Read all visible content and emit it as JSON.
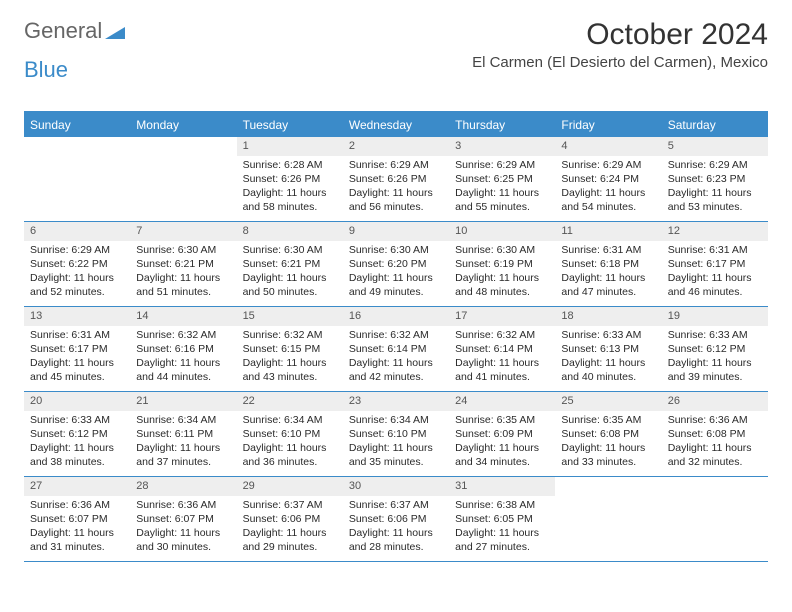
{
  "logo": {
    "text1": "General",
    "text2": "Blue"
  },
  "title": "October 2024",
  "location": "El Carmen (El Desierto del Carmen), Mexico",
  "colors": {
    "header_bg": "#3b8bc9",
    "header_text": "#ffffff",
    "daynum_bg": "#eeeeee",
    "border": "#3b8bc9",
    "body_text": "#2a2a2a",
    "page_bg": "#ffffff"
  },
  "dayNames": [
    "Sunday",
    "Monday",
    "Tuesday",
    "Wednesday",
    "Thursday",
    "Friday",
    "Saturday"
  ],
  "weeks": [
    [
      null,
      null,
      {
        "n": "1",
        "sr": "6:28 AM",
        "ss": "6:26 PM",
        "dl": "11 hours and 58 minutes."
      },
      {
        "n": "2",
        "sr": "6:29 AM",
        "ss": "6:26 PM",
        "dl": "11 hours and 56 minutes."
      },
      {
        "n": "3",
        "sr": "6:29 AM",
        "ss": "6:25 PM",
        "dl": "11 hours and 55 minutes."
      },
      {
        "n": "4",
        "sr": "6:29 AM",
        "ss": "6:24 PM",
        "dl": "11 hours and 54 minutes."
      },
      {
        "n": "5",
        "sr": "6:29 AM",
        "ss": "6:23 PM",
        "dl": "11 hours and 53 minutes."
      }
    ],
    [
      {
        "n": "6",
        "sr": "6:29 AM",
        "ss": "6:22 PM",
        "dl": "11 hours and 52 minutes."
      },
      {
        "n": "7",
        "sr": "6:30 AM",
        "ss": "6:21 PM",
        "dl": "11 hours and 51 minutes."
      },
      {
        "n": "8",
        "sr": "6:30 AM",
        "ss": "6:21 PM",
        "dl": "11 hours and 50 minutes."
      },
      {
        "n": "9",
        "sr": "6:30 AM",
        "ss": "6:20 PM",
        "dl": "11 hours and 49 minutes."
      },
      {
        "n": "10",
        "sr": "6:30 AM",
        "ss": "6:19 PM",
        "dl": "11 hours and 48 minutes."
      },
      {
        "n": "11",
        "sr": "6:31 AM",
        "ss": "6:18 PM",
        "dl": "11 hours and 47 minutes."
      },
      {
        "n": "12",
        "sr": "6:31 AM",
        "ss": "6:17 PM",
        "dl": "11 hours and 46 minutes."
      }
    ],
    [
      {
        "n": "13",
        "sr": "6:31 AM",
        "ss": "6:17 PM",
        "dl": "11 hours and 45 minutes."
      },
      {
        "n": "14",
        "sr": "6:32 AM",
        "ss": "6:16 PM",
        "dl": "11 hours and 44 minutes."
      },
      {
        "n": "15",
        "sr": "6:32 AM",
        "ss": "6:15 PM",
        "dl": "11 hours and 43 minutes."
      },
      {
        "n": "16",
        "sr": "6:32 AM",
        "ss": "6:14 PM",
        "dl": "11 hours and 42 minutes."
      },
      {
        "n": "17",
        "sr": "6:32 AM",
        "ss": "6:14 PM",
        "dl": "11 hours and 41 minutes."
      },
      {
        "n": "18",
        "sr": "6:33 AM",
        "ss": "6:13 PM",
        "dl": "11 hours and 40 minutes."
      },
      {
        "n": "19",
        "sr": "6:33 AM",
        "ss": "6:12 PM",
        "dl": "11 hours and 39 minutes."
      }
    ],
    [
      {
        "n": "20",
        "sr": "6:33 AM",
        "ss": "6:12 PM",
        "dl": "11 hours and 38 minutes."
      },
      {
        "n": "21",
        "sr": "6:34 AM",
        "ss": "6:11 PM",
        "dl": "11 hours and 37 minutes."
      },
      {
        "n": "22",
        "sr": "6:34 AM",
        "ss": "6:10 PM",
        "dl": "11 hours and 36 minutes."
      },
      {
        "n": "23",
        "sr": "6:34 AM",
        "ss": "6:10 PM",
        "dl": "11 hours and 35 minutes."
      },
      {
        "n": "24",
        "sr": "6:35 AM",
        "ss": "6:09 PM",
        "dl": "11 hours and 34 minutes."
      },
      {
        "n": "25",
        "sr": "6:35 AM",
        "ss": "6:08 PM",
        "dl": "11 hours and 33 minutes."
      },
      {
        "n": "26",
        "sr": "6:36 AM",
        "ss": "6:08 PM",
        "dl": "11 hours and 32 minutes."
      }
    ],
    [
      {
        "n": "27",
        "sr": "6:36 AM",
        "ss": "6:07 PM",
        "dl": "11 hours and 31 minutes."
      },
      {
        "n": "28",
        "sr": "6:36 AM",
        "ss": "6:07 PM",
        "dl": "11 hours and 30 minutes."
      },
      {
        "n": "29",
        "sr": "6:37 AM",
        "ss": "6:06 PM",
        "dl": "11 hours and 29 minutes."
      },
      {
        "n": "30",
        "sr": "6:37 AM",
        "ss": "6:06 PM",
        "dl": "11 hours and 28 minutes."
      },
      {
        "n": "31",
        "sr": "6:38 AM",
        "ss": "6:05 PM",
        "dl": "11 hours and 27 minutes."
      },
      null,
      null
    ]
  ],
  "labels": {
    "sunrise": "Sunrise:",
    "sunset": "Sunset:",
    "daylight": "Daylight:"
  }
}
